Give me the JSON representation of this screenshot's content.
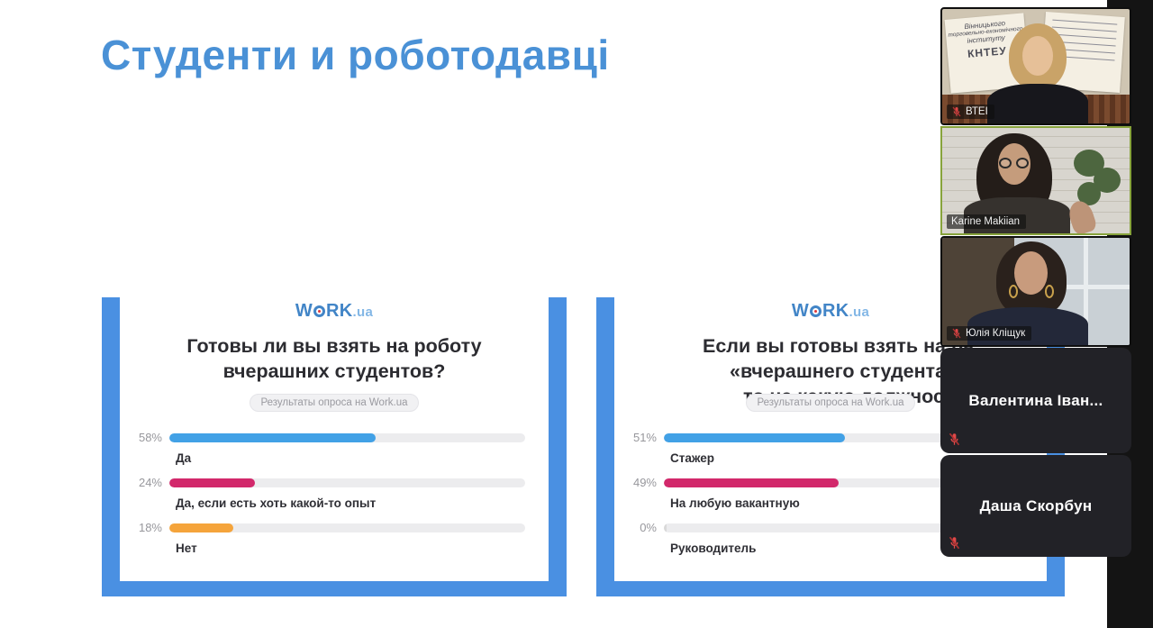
{
  "app": {
    "edge_color": "#141414"
  },
  "slide": {
    "title": "Студенти и роботодавці",
    "title_color": "#4a91d6",
    "frame_color": "#4a90e2",
    "charts": [
      {
        "logo": {
          "w": "W",
          "rk": "RK",
          "ua": ".ua"
        },
        "title_lines": [
          "Готовы ли вы взять на роботу",
          "вчерашних студентов?"
        ],
        "badge": "Результаты опроса на Work.ua",
        "rows": [
          {
            "pct": "58%",
            "value": 58,
            "color": "#42a1e6",
            "label": "Да"
          },
          {
            "pct": "24%",
            "value": 24,
            "color": "#d2286b",
            "label": "Да, если есть хоть какой-то опыт"
          },
          {
            "pct": "18%",
            "value": 18,
            "color": "#f5a43b",
            "label": "Нет"
          }
        ]
      },
      {
        "logo": {
          "w": "W",
          "rk": "RK",
          "ua": ".ua"
        },
        "title_lines": [
          "Если вы готовы взять на ра",
          "«вчерашнего студента»,",
          "то на какую должность?"
        ],
        "badge": "Результаты опроса на Work.ua",
        "rows": [
          {
            "pct": "51%",
            "value": 51,
            "color": "#42a1e6",
            "label": "Стажер"
          },
          {
            "pct": "49%",
            "value": 49,
            "color": "#d2286b",
            "label": "На любую вакантную"
          },
          {
            "pct": "0%",
            "value": 0,
            "color": "#d9d9d9",
            "label": "Руководитель"
          }
        ]
      }
    ]
  },
  "chart_data": [
    {
      "type": "bar",
      "title": "Готовы ли вы взять на роботу вчерашних студентов?",
      "subtitle": "Результаты опроса на Work.ua",
      "source_logo": "WORK.ua",
      "categories": [
        "Да",
        "Да, если есть хоть какой-то опыт",
        "Нет"
      ],
      "values": [
        58,
        24,
        18
      ],
      "unit": "%",
      "bar_colors": [
        "#42a1e6",
        "#d2286b",
        "#f5a43b"
      ],
      "xlim": [
        0,
        100
      ],
      "orientation": "horizontal"
    },
    {
      "type": "bar",
      "title": "Если вы готовы взять на ра… «вчерашнего студента», то на какую должность?",
      "subtitle": "Результаты опроса на Work.ua",
      "source_logo": "WORK.ua",
      "categories": [
        "Стажер",
        "На любую вакантную",
        "Руководитель"
      ],
      "values": [
        51,
        49,
        0
      ],
      "unit": "%",
      "bar_colors": [
        "#42a1e6",
        "#d2286b",
        "#d9d9d9"
      ],
      "xlim": [
        0,
        100
      ],
      "orientation": "horizontal"
    }
  ],
  "sidebar": {
    "participants": [
      {
        "name": "ВТЕІ",
        "muted": true,
        "video": true,
        "mural_lines": [
          "Вінницького",
          "торговельно-економічного",
          "інституту",
          "КНТЕУ"
        ]
      },
      {
        "name": "Karine Makiian",
        "muted": false,
        "video": true,
        "active_speaker_border": "#87a33b"
      },
      {
        "name": "Юлія Кліщук",
        "muted": true,
        "video": true
      },
      {
        "name": "Валентина Іван...",
        "muted": true,
        "video": false
      },
      {
        "name": "Даша Скорбун",
        "muted": true,
        "video": false
      }
    ]
  }
}
